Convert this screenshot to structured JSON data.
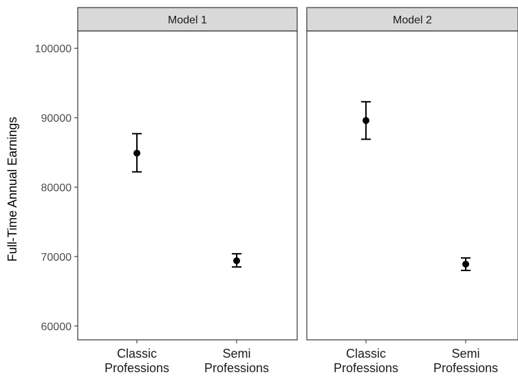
{
  "chart_data": {
    "type": "scatter",
    "subtype": "point-range with error bars, faceted",
    "ylabel": "Full-Time Annual Earnings",
    "xlabel": "",
    "ylim": [
      58000,
      102500
    ],
    "yticks": [
      60000,
      70000,
      80000,
      90000,
      100000
    ],
    "ytick_labels": [
      "60000",
      "70000",
      "80000",
      "90000",
      "100000"
    ],
    "categories": [
      "Classic Professions",
      "Semi Professions"
    ],
    "category_labels": [
      [
        "Classic",
        "Professions"
      ],
      [
        "Semi",
        "Professions"
      ]
    ],
    "grid": false,
    "legend": "none",
    "colors": {
      "strip_fill": "#d9d9d9",
      "panel_border": "#333333",
      "point": "#000000"
    },
    "facets": [
      {
        "label": "Model 1",
        "points": [
          {
            "category": "Classic Professions",
            "value": 84900,
            "lower": 82200,
            "upper": 87700
          },
          {
            "category": "Semi Professions",
            "value": 69400,
            "lower": 68500,
            "upper": 70400
          }
        ]
      },
      {
        "label": "Model 2",
        "points": [
          {
            "category": "Classic Professions",
            "value": 89600,
            "lower": 86900,
            "upper": 92300
          },
          {
            "category": "Semi Professions",
            "value": 68900,
            "lower": 68000,
            "upper": 69800
          }
        ]
      }
    ]
  }
}
